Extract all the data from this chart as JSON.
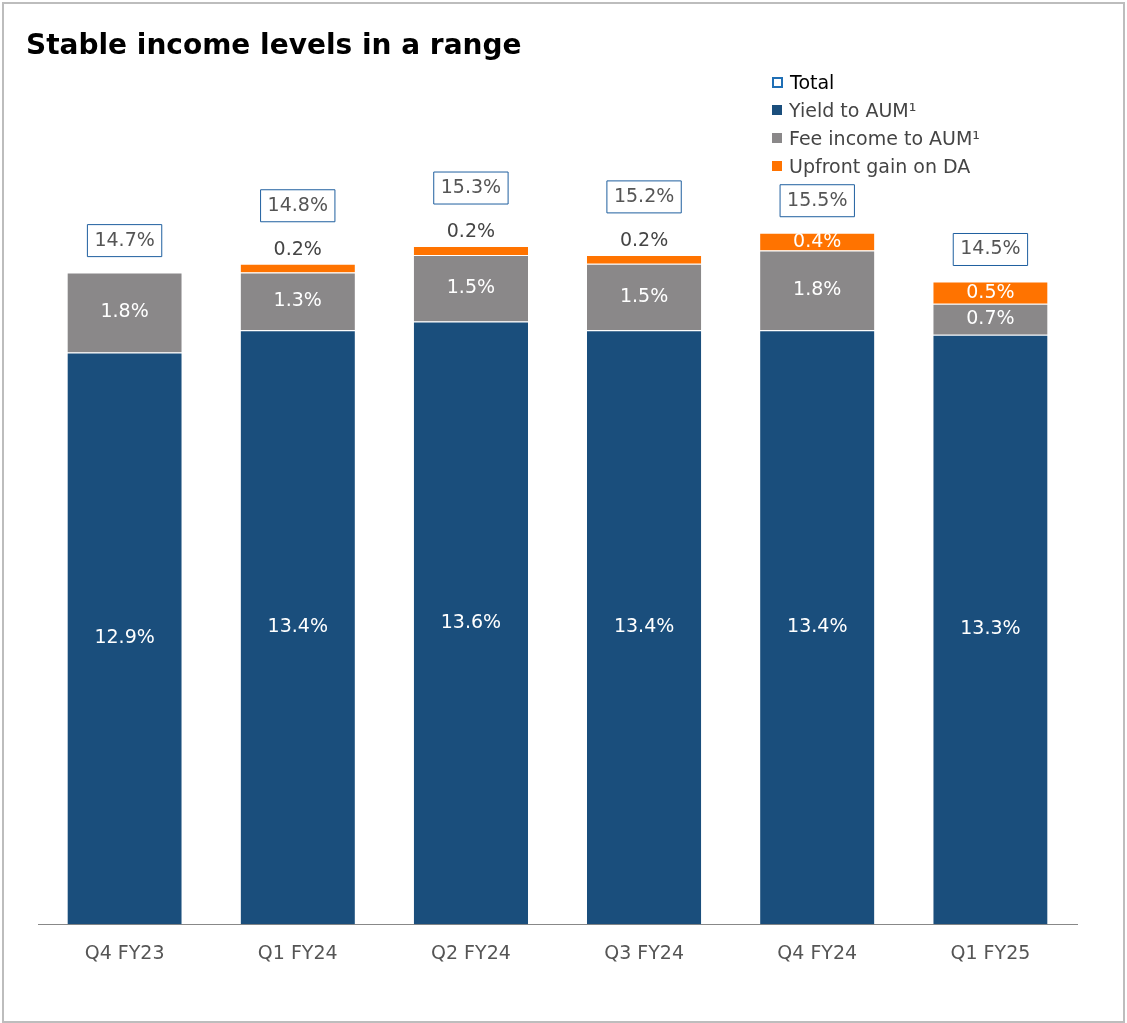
{
  "chart_data": {
    "type": "bar",
    "title": "Stable income levels in a range",
    "legend_title": "Total",
    "stacked": true,
    "legend": "top right",
    "tick_labels": "x",
    "grid": false,
    "categories": [
      "Q4 FY23",
      "Q1 FY24",
      "Q2 FY24",
      "Q3 FY24",
      "Q4 FY24",
      "Q1 FY25"
    ],
    "series": [
      {
        "name": "Yield to AUM¹",
        "color": "#1a4e7c",
        "values": [
          12.9,
          13.4,
          13.6,
          13.4,
          13.4,
          13.3
        ],
        "value_labels": [
          "12.9%",
          "13.4%",
          "13.6%",
          "13.4%",
          "13.4%",
          "13.3%"
        ]
      },
      {
        "name": "Fee income to AUM¹",
        "color": "#8a8889",
        "values": [
          1.8,
          1.3,
          1.5,
          1.5,
          1.8,
          0.7
        ],
        "value_labels": [
          "1.8%",
          "1.3%",
          "1.5%",
          "1.5%",
          "1.8%",
          "0.7%"
        ]
      },
      {
        "name": "Upfront gain on DA",
        "color": "#ff7300",
        "values": [
          null,
          0.2,
          0.2,
          0.2,
          0.4,
          0.5
        ],
        "value_labels": [
          null,
          "0.2%",
          "0.2%",
          "0.2%",
          "0.4%",
          "0.5%"
        ]
      }
    ],
    "totals": [
      "14.7%",
      "14.8%",
      "15.3%",
      "15.2%",
      "15.5%",
      "14.5%"
    ]
  }
}
